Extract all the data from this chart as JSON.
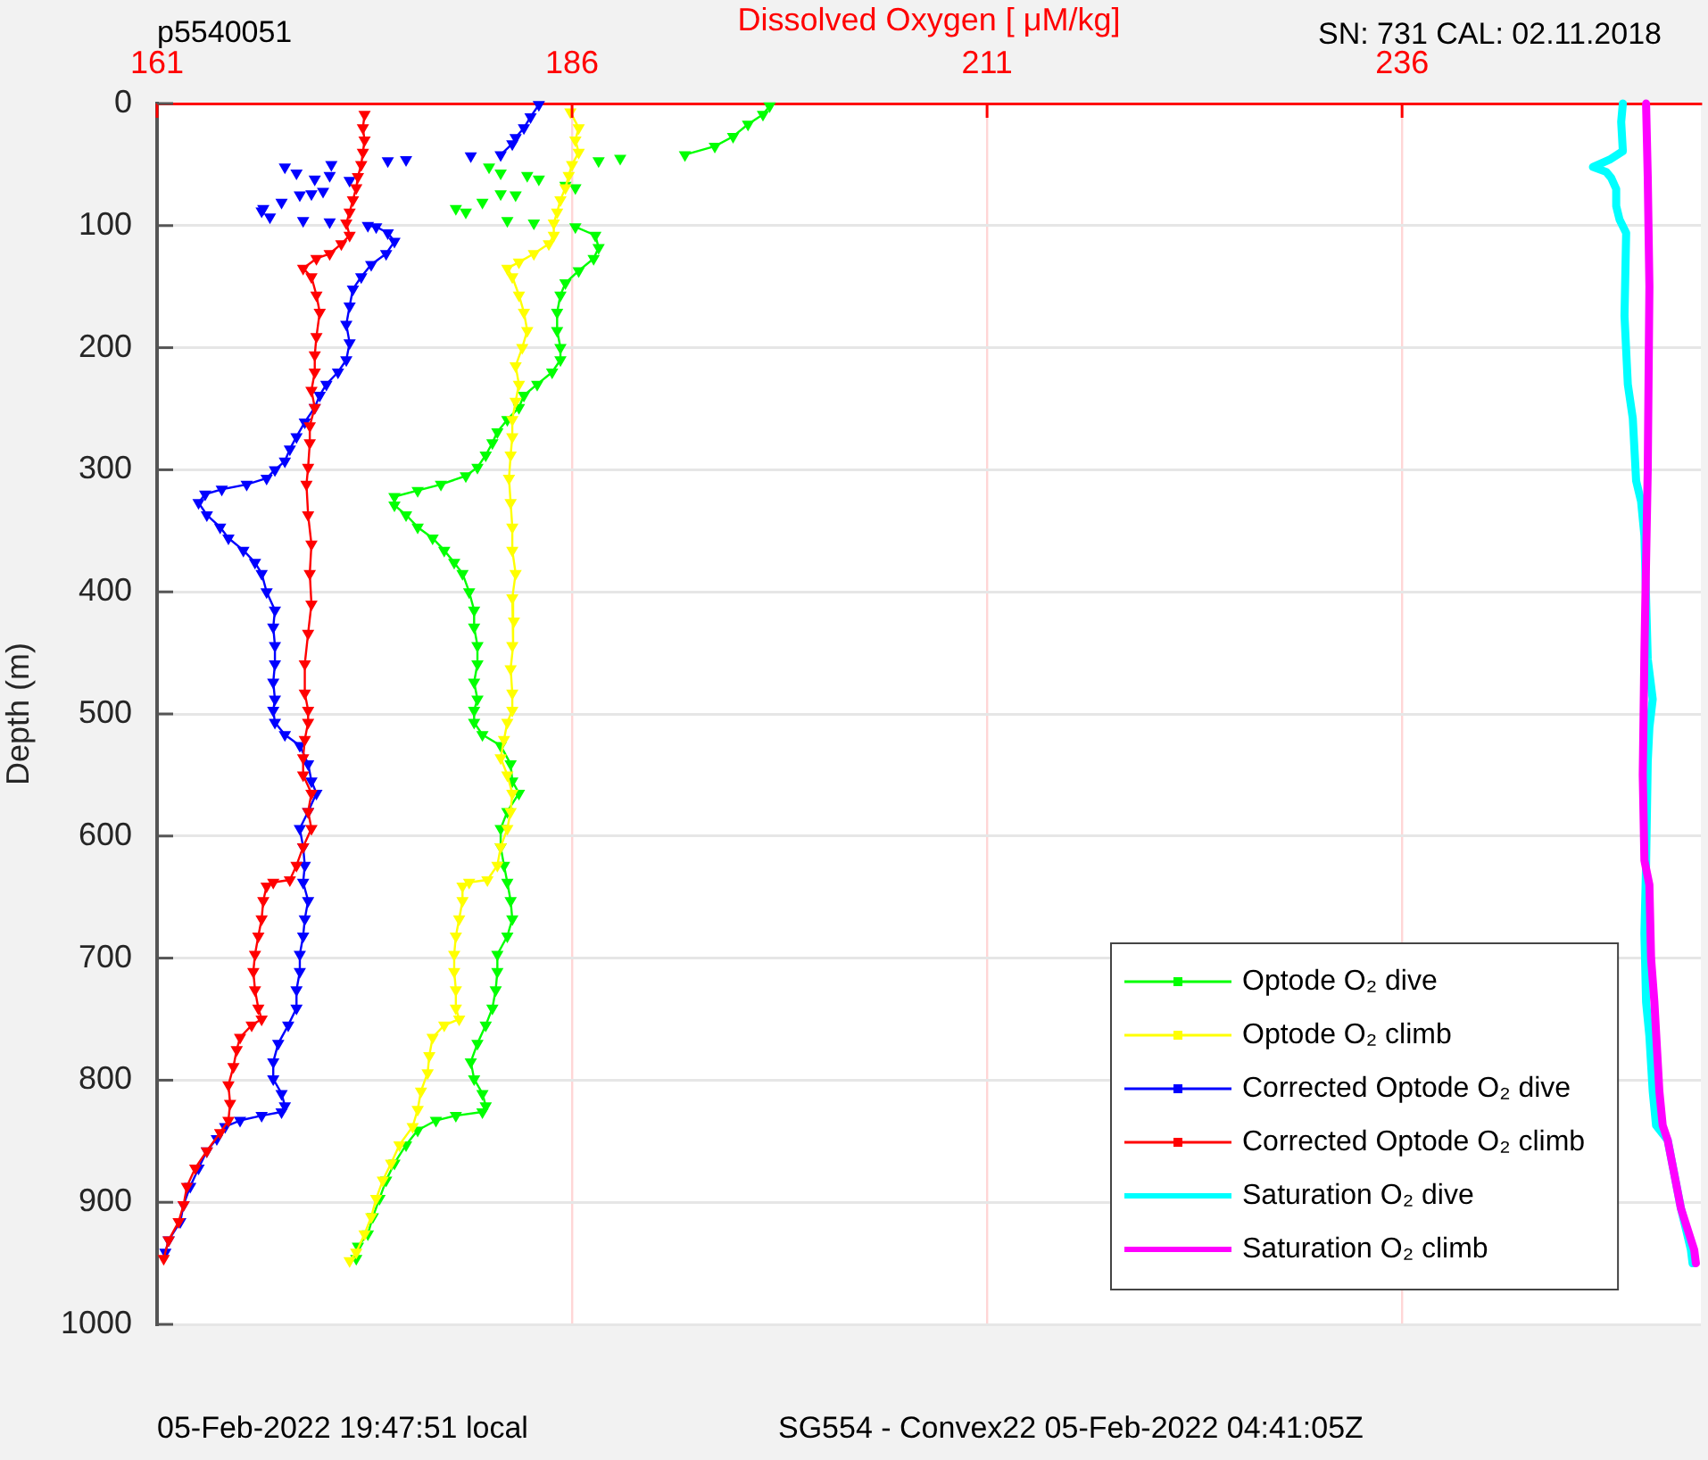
{
  "chart_data": {
    "type": "line",
    "title": "p5540051",
    "xlabel": "Dissolved Oxygen [ μM/kg]",
    "ylabel": "Depth (m)",
    "annotations": [
      "SN: 731 CAL: 02.11.2018",
      "05-Feb-2022 19:47:51 local",
      "SG554 - Convex22 05-Feb-2022 04:41:05Z"
    ],
    "xlim": [
      161,
      254
    ],
    "xticks": [
      161,
      186,
      211,
      236
    ],
    "ylim": [
      1000,
      0
    ],
    "yticks": [
      0,
      100,
      200,
      300,
      400,
      500,
      600,
      700,
      800,
      900,
      1000
    ],
    "grid": true,
    "legend": "bottom right",
    "marker": "triangle",
    "series": [
      {
        "name": "Optode O₂ dive",
        "color": "#00ff00",
        "x": [
          197.9,
          197.5,
          196.6,
          195.7,
          194.6,
          192.8,
          null,
          188.9,
          null,
          187.6,
          null,
          181.0,
          null,
          181.7,
          null,
          183.3,
          null,
          184.0,
          null,
          185.6,
          null,
          186.2,
          null,
          181.7,
          null,
          182.6,
          null,
          180.6,
          null,
          179.0,
          null,
          179.6,
          null,
          182.1,
          null,
          183.7,
          null,
          186.2,
          187.4,
          187.6,
          187.3,
          186.4,
          185.6,
          185.3,
          185.1,
          185.1,
          185.3,
          185.3,
          184.8,
          183.9,
          183.1,
          182.8,
          182.1,
          181.5,
          181.2,
          180.8,
          180.3,
          179.6,
          178.1,
          176.7,
          175.3,
          175.3,
          176.0,
          176.7,
          177.6,
          178.3,
          178.9,
          179.4,
          179.8,
          180.1,
          180.1,
          180.3,
          180.3,
          180.1,
          180.3,
          180.1,
          180.1,
          180.6,
          181.7,
          182.3,
          182.4,
          182.8,
          182.1,
          181.7,
          181.7,
          181.9,
          182.1,
          182.3,
          182.4,
          182.1,
          181.5,
          181.5,
          181.4,
          181.2,
          180.8,
          180.3,
          179.9,
          180.1,
          180.6,
          180.8,
          180.6,
          179.0,
          177.8,
          176.7,
          176.0,
          175.3,
          174.8,
          174.4,
          174.0,
          173.7,
          173.1,
          173.0
        ],
        "values": [
          2,
          9,
          17,
          27,
          35,
          42,
          null,
          45,
          null,
          47,
          null,
          52,
          null,
          57,
          null,
          59,
          null,
          62,
          null,
          67,
          null,
          69,
          null,
          74,
          null,
          75,
          null,
          81,
          null,
          86,
          null,
          89,
          null,
          96,
          null,
          98,
          null,
          101,
          108,
          118,
          127,
          137,
          147,
          157,
          171,
          186,
          200,
          210,
          220,
          230,
          239,
          249,
          259,
          269,
          278,
          288,
          298,
          305,
          312,
          317,
          322,
          329,
          337,
          347,
          356,
          366,
          376,
          385,
          400,
          415,
          429,
          444,
          459,
          474,
          488,
          497,
          507,
          517,
          526,
          541,
          555,
          565,
          580,
          594,
          609,
          624,
          638,
          653,
          668,
          682,
          697,
          711,
          726,
          741,
          755,
          770,
          785,
          799,
          811,
          821,
          826,
          829,
          833,
          841,
          853,
          868,
          882,
          897,
          912,
          926,
          936,
          946
        ]
      },
      {
        "name": "Optode O₂ climb",
        "color": "#ffff00",
        "x": [
          185.9,
          186.4,
          186.2,
          186.4,
          186.0,
          185.8,
          185.6,
          185.3,
          185.1,
          184.9,
          184.9,
          184.6,
          183.7,
          182.8,
          182.1,
          182.4,
          182.8,
          183.1,
          183.3,
          183.0,
          182.6,
          182.8,
          182.6,
          182.4,
          182.4,
          182.3,
          182.2,
          182.3,
          182.4,
          182.4,
          182.6,
          182.4,
          182.5,
          182.4,
          182.3,
          182.4,
          182.4,
          182.1,
          181.9,
          181.7,
          182.1,
          182.4,
          182.3,
          182.1,
          181.7,
          181.5,
          180.9,
          179.8,
          179.4,
          179.4,
          179.2,
          179.0,
          178.9,
          178.9,
          179.0,
          179.0,
          179.2,
          178.3,
          177.6,
          177.4,
          177.3,
          176.9,
          176.7,
          176.4,
          175.6,
          175.1,
          174.6,
          174.2,
          173.9,
          173.5,
          173.0,
          172.6
        ],
        "values": [
          7,
          20,
          30,
          40,
          50,
          59,
          69,
          79,
          89,
          98,
          108,
          115,
          123,
          130,
          135,
          142,
          157,
          171,
          186,
          200,
          215,
          230,
          244,
          259,
          273,
          288,
          307,
          327,
          347,
          366,
          385,
          405,
          424,
          444,
          463,
          483,
          497,
          507,
          521,
          536,
          550,
          565,
          580,
          594,
          609,
          624,
          636,
          638,
          641,
          653,
          668,
          682,
          697,
          711,
          726,
          741,
          750,
          755,
          765,
          780,
          794,
          809,
          824,
          838,
          853,
          868,
          882,
          897,
          912,
          926,
          941,
          948
        ]
      },
      {
        "name": "Corrected Optode O₂ dive",
        "color": "#0000ff",
        "x": [
          184.0,
          183.5,
          183.1,
          182.6,
          182.4,
          181.7,
          null,
          179.9,
          null,
          176.0,
          null,
          174.9,
          null,
          171.5,
          null,
          168.7,
          null,
          169.4,
          null,
          171.4,
          null,
          170.5,
          null,
          172.6,
          null,
          171.0,
          null,
          170.3,
          null,
          169.6,
          null,
          168.5,
          null,
          167.4,
          null,
          167.3,
          null,
          167.8,
          null,
          169.8,
          null,
          171.4,
          null,
          173.7,
          174.2,
          174.9,
          175.3,
          174.8,
          173.9,
          173.3,
          172.8,
          172.6,
          172.4,
          172.6,
          172.4,
          171.9,
          171.2,
          170.8,
          170.5,
          169.9,
          169.4,
          169.0,
          168.7,
          168.1,
          167.6,
          166.4,
          164.9,
          163.9,
          163.5,
          164.0,
          164.8,
          165.3,
          166.2,
          166.9,
          167.3,
          167.6,
          168.1,
          168.0,
          168.1,
          168.1,
          168.0,
          168.1,
          168.0,
          168.1,
          168.7,
          169.6,
          170.1,
          170.3,
          170.6,
          170.1,
          169.6,
          169.8,
          169.9,
          169.8,
          170.1,
          169.9,
          169.8,
          169.6,
          169.6,
          169.4,
          169.4,
          168.9,
          168.3,
          168.0,
          168.0,
          168.5,
          168.7,
          168.5,
          167.3,
          166.0,
          165.1,
          164.6,
          164.0,
          163.5,
          163.0,
          162.6,
          162.4,
          161.7,
          161.5
        ],
        "values": [
          1,
          11,
          20,
          28,
          33,
          42,
          null,
          43,
          null,
          46,
          null,
          47,
          null,
          50,
          null,
          52,
          null,
          57,
          null,
          59,
          null,
          62,
          null,
          63,
          null,
          72,
          null,
          74,
          null,
          75,
          null,
          81,
          null,
          86,
          null,
          88,
          null,
          93,
          null,
          96,
          null,
          97,
          null,
          100,
          101,
          106,
          113,
          123,
          132,
          142,
          152,
          166,
          181,
          196,
          210,
          220,
          230,
          239,
          249,
          261,
          273,
          283,
          293,
          300,
          307,
          312,
          316,
          320,
          327,
          337,
          347,
          356,
          366,
          376,
          385,
          400,
          415,
          429,
          444,
          459,
          474,
          488,
          497,
          507,
          517,
          526,
          541,
          555,
          565,
          580,
          594,
          609,
          624,
          638,
          653,
          668,
          682,
          697,
          711,
          726,
          741,
          755,
          770,
          785,
          799,
          811,
          821,
          826,
          829,
          833,
          838,
          848,
          858,
          872,
          887,
          902,
          916,
          931,
          941
        ]
      },
      {
        "name": "Corrected Optode O₂ climb",
        "color": "#ff0000",
        "x": [
          173.5,
          173.4,
          173.5,
          173.4,
          173.3,
          173.1,
          173.0,
          172.8,
          172.6,
          172.4,
          172.6,
          172.1,
          171.4,
          170.6,
          169.8,
          170.3,
          170.6,
          170.8,
          170.6,
          170.5,
          170.5,
          170.3,
          170.5,
          170.2,
          170.2,
          170.1,
          170.0,
          170.1,
          170.3,
          170.2,
          170.3,
          170.1,
          169.9,
          169.9,
          170.1,
          170.1,
          169.9,
          169.8,
          169.8,
          170.3,
          170.1,
          170.3,
          169.8,
          169.4,
          169.0,
          168.0,
          167.6,
          167.4,
          167.3,
          167.1,
          166.9,
          166.8,
          166.9,
          167.1,
          167.3,
          166.7,
          166.0,
          165.8,
          165.6,
          165.3,
          165.4,
          165.3,
          164.8,
          164.0,
          163.3,
          162.8,
          162.6,
          162.3,
          161.7,
          161.4
        ],
        "values": [
          9,
          20,
          30,
          40,
          50,
          60,
          69,
          79,
          89,
          98,
          108,
          115,
          123,
          127,
          135,
          142,
          157,
          171,
          191,
          206,
          220,
          235,
          249,
          264,
          278,
          298,
          312,
          337,
          361,
          385,
          410,
          434,
          459,
          483,
          497,
          507,
          521,
          536,
          550,
          565,
          580,
          594,
          609,
          624,
          636,
          638,
          641,
          653,
          668,
          682,
          697,
          711,
          726,
          741,
          750,
          755,
          765,
          775,
          789,
          804,
          819,
          833,
          843,
          858,
          872,
          887,
          902,
          916,
          931,
          946
        ]
      },
      {
        "name": "Saturation O₂ dive",
        "color": "#00ffff",
        "marker": "none",
        "x": [
          249.3,
          249.2,
          249.3,
          248.5,
          247.5,
          248.3,
          248.6,
          248.9,
          248.9,
          249.1,
          249.5,
          249.4,
          249.6,
          249.9,
          250.1,
          250.4,
          250.6,
          250.8,
          251.1,
          250.9,
          250.8,
          250.7,
          250.6,
          250.7,
          250.9,
          251.1,
          251.3,
          252.0,
          252.8,
          253.4,
          253.5
        ],
        "values": [
          0,
          15,
          39,
          46,
          52,
          56,
          61,
          70,
          84,
          95,
          106,
          174,
          230,
          258,
          309,
          326,
          354,
          455,
          488,
          511,
          539,
          624,
          680,
          736,
          764,
          809,
          837,
          849,
          905,
          939,
          950
        ]
      },
      {
        "name": "Saturation O₂ climb",
        "color": "#ff00ff",
        "marker": "none",
        "x": [
          250.7,
          250.8,
          250.9,
          250.8,
          250.6,
          250.5,
          250.6,
          250.9,
          251.0,
          251.2,
          251.5,
          251.7,
          252.0,
          252.8,
          253.6,
          253.7
        ],
        "values": [
          0,
          60,
          150,
          300,
          450,
          550,
          620,
          640,
          700,
          736,
          809,
          837,
          849,
          905,
          939,
          950
        ]
      }
    ]
  }
}
